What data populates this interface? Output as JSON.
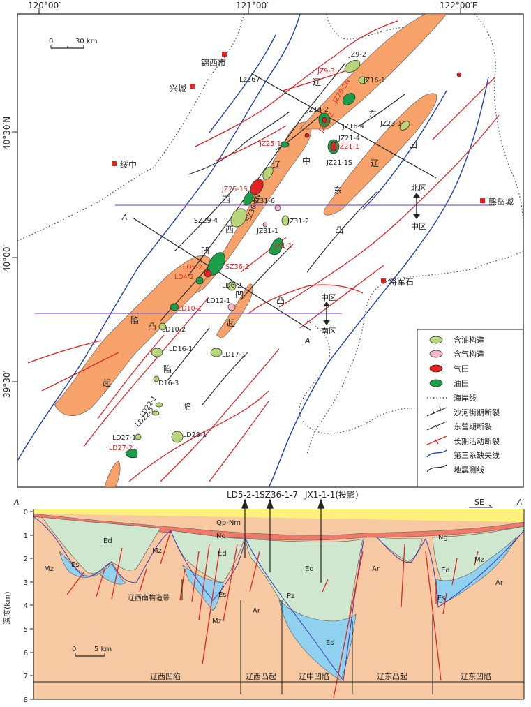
{
  "map": {
    "lon_labels": [
      "120°00′",
      "121°00′",
      "122°00′E"
    ],
    "lat_labels": [
      "40°30′N",
      "40°00′",
      "39°30′"
    ],
    "scale": {
      "zero": "0",
      "value": "30 km"
    },
    "cities": [
      "锦西市",
      "兴城",
      "绥中",
      "熊岳城",
      "将军石"
    ],
    "section_label_a": "A",
    "section_label_a2": "A′",
    "profile_line": "Lz267",
    "zones": {
      "north": "北区",
      "middle": "中区",
      "south": "南区"
    },
    "basin_chars": {
      "west_depression": [
        "辽",
        "西",
        "凹",
        "陷"
      ],
      "west_uplift": [
        "辽",
        "西",
        "凸",
        "起"
      ],
      "central": [
        "辽",
        "中",
        "凹",
        "陷"
      ],
      "east_uplift": [
        "辽",
        "东",
        "凸",
        "起"
      ],
      "east_depression": [
        "辽",
        "东",
        "凹",
        "陷"
      ]
    },
    "wells_black": [
      "JZ9-2",
      "JZ16-1",
      "JZ14-2",
      "JZ16-4",
      "JZ23-1",
      "JZ21-4",
      "JZ21-1S",
      "JZ31-6",
      "SZ29-4",
      "SZ36-1N",
      "JZ31-1",
      "JZ31-2",
      "LD6-2",
      "LD12-1",
      "LD10-2",
      "LD16-1",
      "LD17-1",
      "LD16-3",
      "LD22-1",
      "LD22-2",
      "LD27-1",
      "LD28-1"
    ],
    "wells_red": [
      "JZ9-3",
      "JZ20-2N",
      "JZ20-2",
      "JZ25-1",
      "JZ21-1",
      "JZ25-1S",
      "JX1-1",
      "SZ36-1",
      "LD5-2",
      "LD4-2",
      "LD10-1",
      "LD27-2"
    ]
  },
  "legend": {
    "items": [
      "含油构造",
      "含气构造",
      "气田",
      "油田",
      "海岸线",
      "沙河街期断裂",
      "东营期断裂",
      "长期活动断裂",
      "第三系缺失线",
      "地震测线"
    ],
    "colors": {
      "oil_structure": "#b7d67a",
      "gas_structure": "#f5b6c8",
      "gas_field": "#e02424",
      "oil_field": "#1a9e4a",
      "fault_red": "#e02424",
      "missing_line": "#1f3fb5",
      "survey": "#222222",
      "basin": "#f6a26a"
    }
  },
  "section": {
    "wells": [
      "LD5-2-1",
      "SZ36-1-7",
      "JX1-1-1(投影)"
    ],
    "direction": "SE",
    "end_a": "A",
    "end_a2": "A′",
    "y_axis_label": "深度(km)",
    "y_ticks": [
      "0",
      "1",
      "2",
      "3",
      "4",
      "5",
      "6",
      "7",
      "8"
    ],
    "layers": [
      "Qp-Nm",
      "Ng",
      "Ed",
      "Es",
      "Mz",
      "Ar",
      "Pz"
    ],
    "structure_name": "辽西南构造带",
    "scale": {
      "zero": "0",
      "value": "5 km"
    },
    "bottom_units": [
      "辽西凹陷",
      "辽西凸起",
      "辽中凹陷",
      "辽东凸起",
      "辽东凹陷"
    ],
    "colors": {
      "sea": "#fff27a",
      "ng": "#ee7b6a",
      "ed": "#cfe6cf",
      "es": "#8fd1ef",
      "basement": "#f6c9a2"
    }
  }
}
